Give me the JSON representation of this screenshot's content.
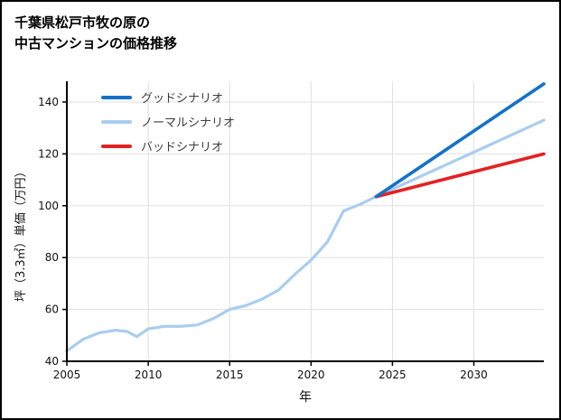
{
  "page": {
    "title_line1": "千葉県松戸市牧の原の",
    "title_line2": "中古マンションの価格推移"
  },
  "chart_data": {
    "type": "line",
    "title": "千葉県松戸市牧の原の中古マンションの価格推移",
    "xlabel": "年",
    "ylabel": "坪（3.3㎡）単価（万円）",
    "xlim": [
      2005,
      2034.3
    ],
    "ylim": [
      40,
      148
    ],
    "xticks": [
      2005,
      2010,
      2015,
      2020,
      2025,
      2030
    ],
    "yticks": [
      40,
      60,
      80,
      100,
      120,
      140
    ],
    "grid": true,
    "legend_position": "top-left",
    "colors": {
      "axis": "#000000",
      "grid": "#e0e0e0",
      "tick_label": "#111111",
      "legend_text": "#3d3d3d",
      "background": "#ffffff"
    },
    "series": [
      {
        "name": "グッドシナリオ",
        "color": "#1471c9",
        "line_width": 3.6,
        "x": [
          2024,
          2034.3
        ],
        "values": [
          103.5,
          147
        ]
      },
      {
        "name": "ノーマルシナリオ",
        "color": "#a9cdf0",
        "line_width": 3.2,
        "x": [
          2005,
          2006,
          2007,
          2008,
          2008.7,
          2009.3,
          2010,
          2011,
          2012,
          2013,
          2014,
          2015,
          2016,
          2017,
          2018,
          2019,
          2020,
          2021,
          2022,
          2023,
          2024,
          2034.3
        ],
        "values": [
          44,
          48.5,
          51,
          52,
          51.5,
          49.5,
          52.5,
          53.5,
          53.5,
          54,
          56.5,
          60,
          61.5,
          64,
          67.5,
          73.5,
          79,
          86,
          98,
          100.5,
          103.5,
          133
        ]
      },
      {
        "name": "バッドシナリオ",
        "color": "#e32222",
        "line_width": 3.6,
        "x": [
          2024,
          2034.3
        ],
        "values": [
          103.5,
          120
        ]
      }
    ]
  }
}
